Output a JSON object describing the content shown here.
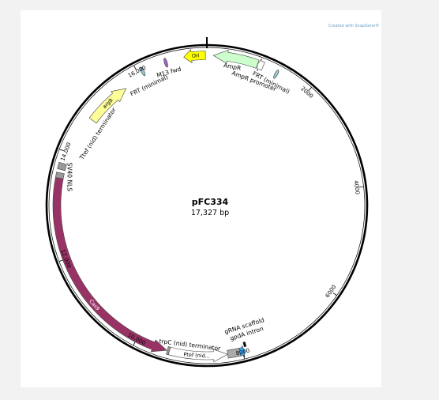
{
  "watermark": "Created with SnapGene®",
  "plasmid": {
    "name": "pFC334",
    "size": "17,327 bp",
    "total_bp": 17327
  },
  "ticks": [
    {
      "bp": 2000,
      "label": "2000"
    },
    {
      "bp": 4000,
      "label": "4000"
    },
    {
      "bp": 6000,
      "label": "6000"
    },
    {
      "bp": 8000,
      "label": "8000"
    },
    {
      "bp": 10000,
      "label": "10,000"
    },
    {
      "bp": 12000,
      "label": "12,000"
    },
    {
      "bp": 14000,
      "label": "14,000"
    },
    {
      "bp": 16000,
      "label": "16,000"
    }
  ],
  "features": [
    {
      "id": "ori",
      "label": "Ori",
      "start": 16900,
      "end": 17300,
      "strand": -1,
      "color": "#ffff00"
    },
    {
      "id": "ampr",
      "label": "AmpR",
      "start": 120,
      "end": 950,
      "strand": -1,
      "color": "#ccffcc"
    },
    {
      "id": "ampr-promoter",
      "label": "AmpR promoter",
      "start": 950,
      "end": 1060,
      "strand": -1,
      "color": "#ffffff"
    },
    {
      "id": "frt-1",
      "label": "FRT (minimal)",
      "start": 1320,
      "end": 1360,
      "strand": 0,
      "color": "#99ccdd"
    },
    {
      "id": "m13-fwd",
      "label": "M13 fwd",
      "start": 16540,
      "end": 16570,
      "strand": 0,
      "color": "#9966cc"
    },
    {
      "id": "frt-2",
      "label": "FRT (minimal)",
      "start": 16080,
      "end": 16110,
      "strand": 0,
      "color": "#99ccdd"
    },
    {
      "id": "argb",
      "label": "argB",
      "start": 14760,
      "end": 15660,
      "strand": 1,
      "color": "#ffff99"
    },
    {
      "id": "ttef",
      "label": "Ttef (nid) terminator",
      "start": 13660,
      "end": 13780,
      "strand": 0,
      "color": "#999999"
    },
    {
      "id": "sv40-nls",
      "label": "SV40 NLS",
      "start": 13500,
      "end": 13600,
      "strand": 0,
      "color": "#999999"
    },
    {
      "id": "cas9",
      "label": "Cas9",
      "start": 9410,
      "end": 13500,
      "strand": -1,
      "color": "#993366"
    },
    {
      "id": "trpc",
      "label": "trpC (nid) terminator",
      "start": 9360,
      "end": 9400,
      "strand": 0,
      "color": "#999999"
    },
    {
      "id": "ptef",
      "label": "Ptef (nid...",
      "start": 8280,
      "end": 9360,
      "strand": -1,
      "color": "#ffffff"
    },
    {
      "id": "gpda-intron",
      "label": "gpdA intron",
      "start": 8050,
      "end": 8280,
      "strand": 0,
      "color": "#aaaaaa"
    },
    {
      "id": "grna-scaffold",
      "label": "gRNA scaffold",
      "start": 7960,
      "end": 8050,
      "strand": -1,
      "color": "#33aaff"
    },
    {
      "id": "small-black",
      "label": "",
      "start": 7910,
      "end": 7950,
      "strand": 0,
      "color": "#000000"
    }
  ]
}
